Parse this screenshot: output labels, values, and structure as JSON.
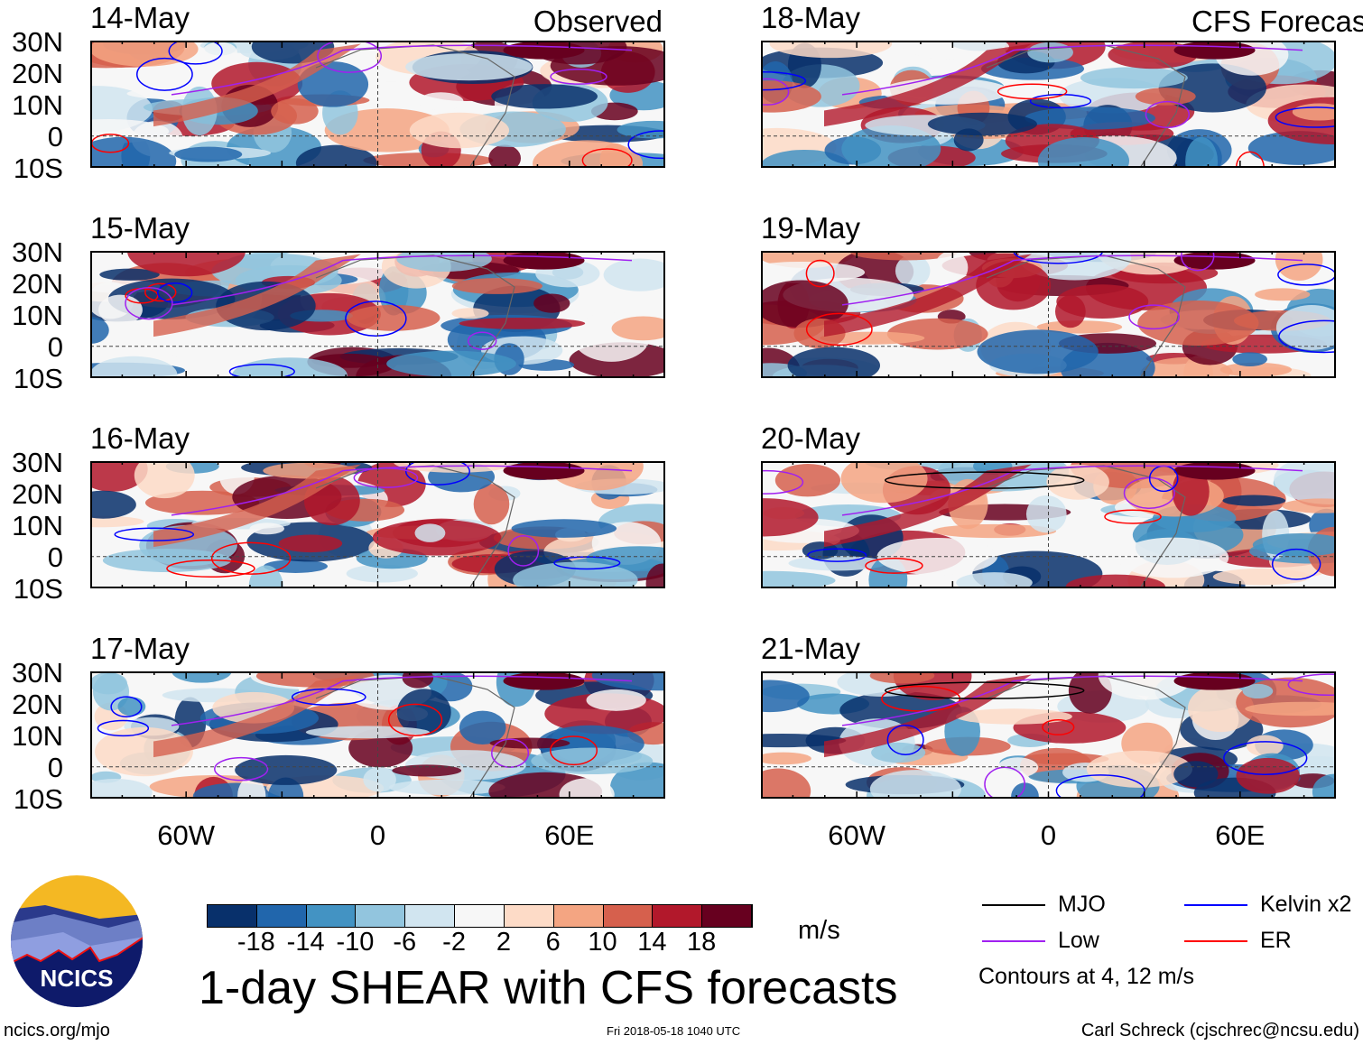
{
  "panels": [
    {
      "date": "14-May",
      "header": "Observed",
      "col": 0,
      "row": 0,
      "seed": 3
    },
    {
      "date": "15-May",
      "header": "",
      "col": 0,
      "row": 1,
      "seed": 7
    },
    {
      "date": "16-May",
      "header": "",
      "col": 0,
      "row": 2,
      "seed": 11
    },
    {
      "date": "17-May",
      "header": "",
      "col": 0,
      "row": 3,
      "seed": 17
    },
    {
      "date": "18-May",
      "header": "CFS Forecast",
      "col": 1,
      "row": 0,
      "seed": 23
    },
    {
      "date": "19-May",
      "header": "",
      "col": 1,
      "row": 1,
      "seed": 29
    },
    {
      "date": "20-May",
      "header": "",
      "col": 1,
      "row": 2,
      "seed": 31
    },
    {
      "date": "21-May",
      "header": "",
      "col": 1,
      "row": 3,
      "seed": 37
    }
  ],
  "lat_labels": [
    "30N",
    "20N",
    "10N",
    "0",
    "10S"
  ],
  "lon_labels": [
    "60W",
    "0",
    "60E"
  ],
  "chart_data": {
    "type": "heatmap",
    "title": "1-day SHEAR with CFS forecasts",
    "units": "m/s",
    "lat_range": [
      -10,
      30
    ],
    "lon_range": [
      -90,
      90
    ],
    "colorbar": {
      "ticks": [
        "-18",
        "-14",
        "-10",
        "-6",
        "-2",
        "2",
        "6",
        "10",
        "14",
        "18"
      ],
      "colors": [
        "#08306b",
        "#2166ac",
        "#4393c3",
        "#92c5de",
        "#d1e5f0",
        "#f7f7f7",
        "#fddbc7",
        "#f4a582",
        "#d6604d",
        "#b2182b",
        "#67001f"
      ]
    },
    "contours_note": "Contours at 4, 12 m/s",
    "legend": [
      {
        "label": "MJO",
        "color": "#000000"
      },
      {
        "label": "Kelvin x2",
        "color": "#0000ff"
      },
      {
        "label": "Low",
        "color": "#a020f0"
      },
      {
        "label": "ER",
        "color": "#ff0000"
      }
    ]
  },
  "footer": {
    "url": "ncics.org/mjo",
    "timestamp": "Fri 2018-05-18 1040 UTC",
    "author": "Carl Schreck (cjschrec@ncsu.edu)",
    "logo_text": "NCICS"
  }
}
